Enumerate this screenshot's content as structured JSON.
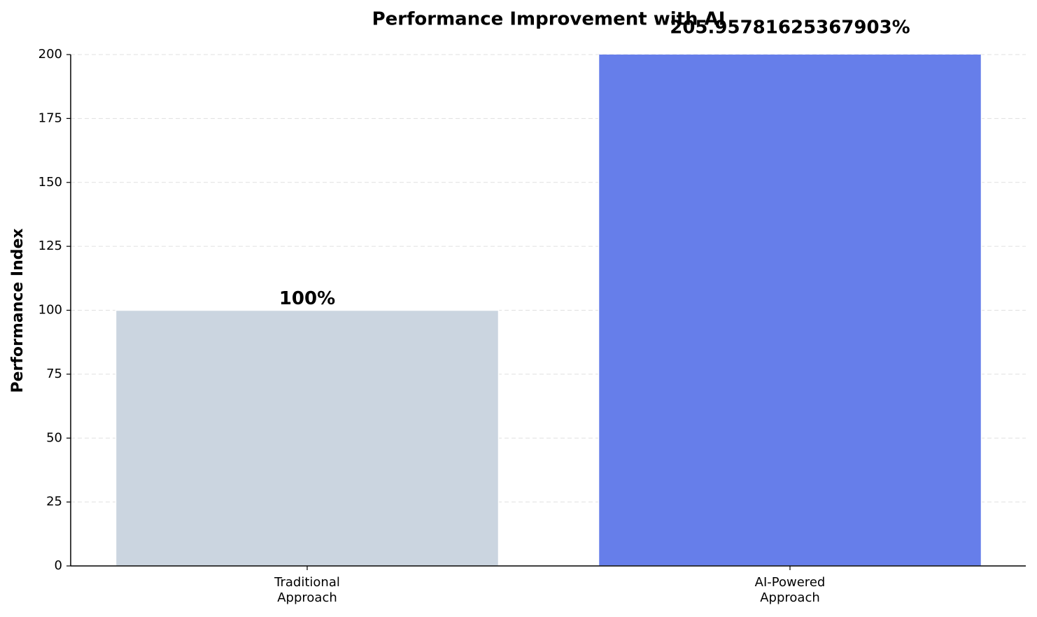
{
  "chart_data": {
    "type": "bar",
    "title": "Performance Improvement with AI",
    "y_label": "Performance Index",
    "categories": [
      "Traditional\nApproach",
      "AI-Powered\nApproach"
    ],
    "values": [
      100,
      205.95781625367903
    ],
    "value_labels": [
      "100%",
      "205.95781625367903%"
    ],
    "colors": [
      "#cbd5e0",
      "#667eea"
    ],
    "ylim": [
      0,
      200
    ],
    "yticks": [
      0,
      25,
      50,
      75,
      100,
      125,
      150,
      175,
      200
    ],
    "grid": true
  }
}
